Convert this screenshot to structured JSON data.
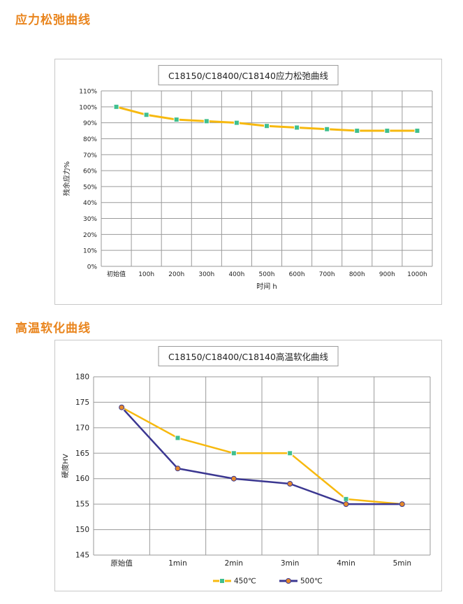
{
  "sections": [
    {
      "title": "应力松弛曲线"
    },
    {
      "title": "高温软化曲线"
    }
  ],
  "colors": {
    "yellow": "#f7b90f",
    "navy": "#3b3791",
    "marker_green": "#3fbf8f",
    "marker_orange": "#e6892a",
    "title_orange": "#e9841c",
    "grid": "#9a9a9a"
  },
  "chart_data": [
    {
      "type": "line",
      "title": "C18150/C18400/C18140应力松弛曲线",
      "xlabel": "时间 h",
      "ylabel": "残余应力%",
      "categories": [
        "初始值",
        "100h",
        "200h",
        "300h",
        "400h",
        "500h",
        "600h",
        "700h",
        "800h",
        "900h",
        "1000h"
      ],
      "yticks": [
        "0%",
        "10%",
        "20%",
        "30%",
        "40%",
        "50%",
        "60%",
        "70%",
        "80%",
        "90%",
        "100%",
        "110%"
      ],
      "ylim": [
        0,
        110
      ],
      "grid": true,
      "series": [
        {
          "values": [
            100,
            95,
            92,
            91,
            90,
            88,
            87,
            86,
            85,
            85,
            85
          ],
          "color": "#f7b90f"
        }
      ]
    },
    {
      "type": "line",
      "title": "C18150/C18400/C18140高温软化曲线",
      "xlabel": "",
      "ylabel": "硬度HV",
      "categories": [
        "原始值",
        "1min",
        "2min",
        "3min",
        "4min",
        "5min"
      ],
      "yticks": [
        "145",
        "150",
        "155",
        "160",
        "165",
        "170",
        "175",
        "180"
      ],
      "ylim": [
        145,
        180
      ],
      "grid": true,
      "legend": "bottom",
      "series": [
        {
          "name": "450℃",
          "values": [
            174,
            168,
            165,
            165,
            156,
            155
          ],
          "color": "#f7b90f"
        },
        {
          "name": "500℃",
          "values": [
            174,
            162,
            160,
            159,
            155,
            155
          ],
          "color": "#3b3791"
        }
      ]
    }
  ]
}
